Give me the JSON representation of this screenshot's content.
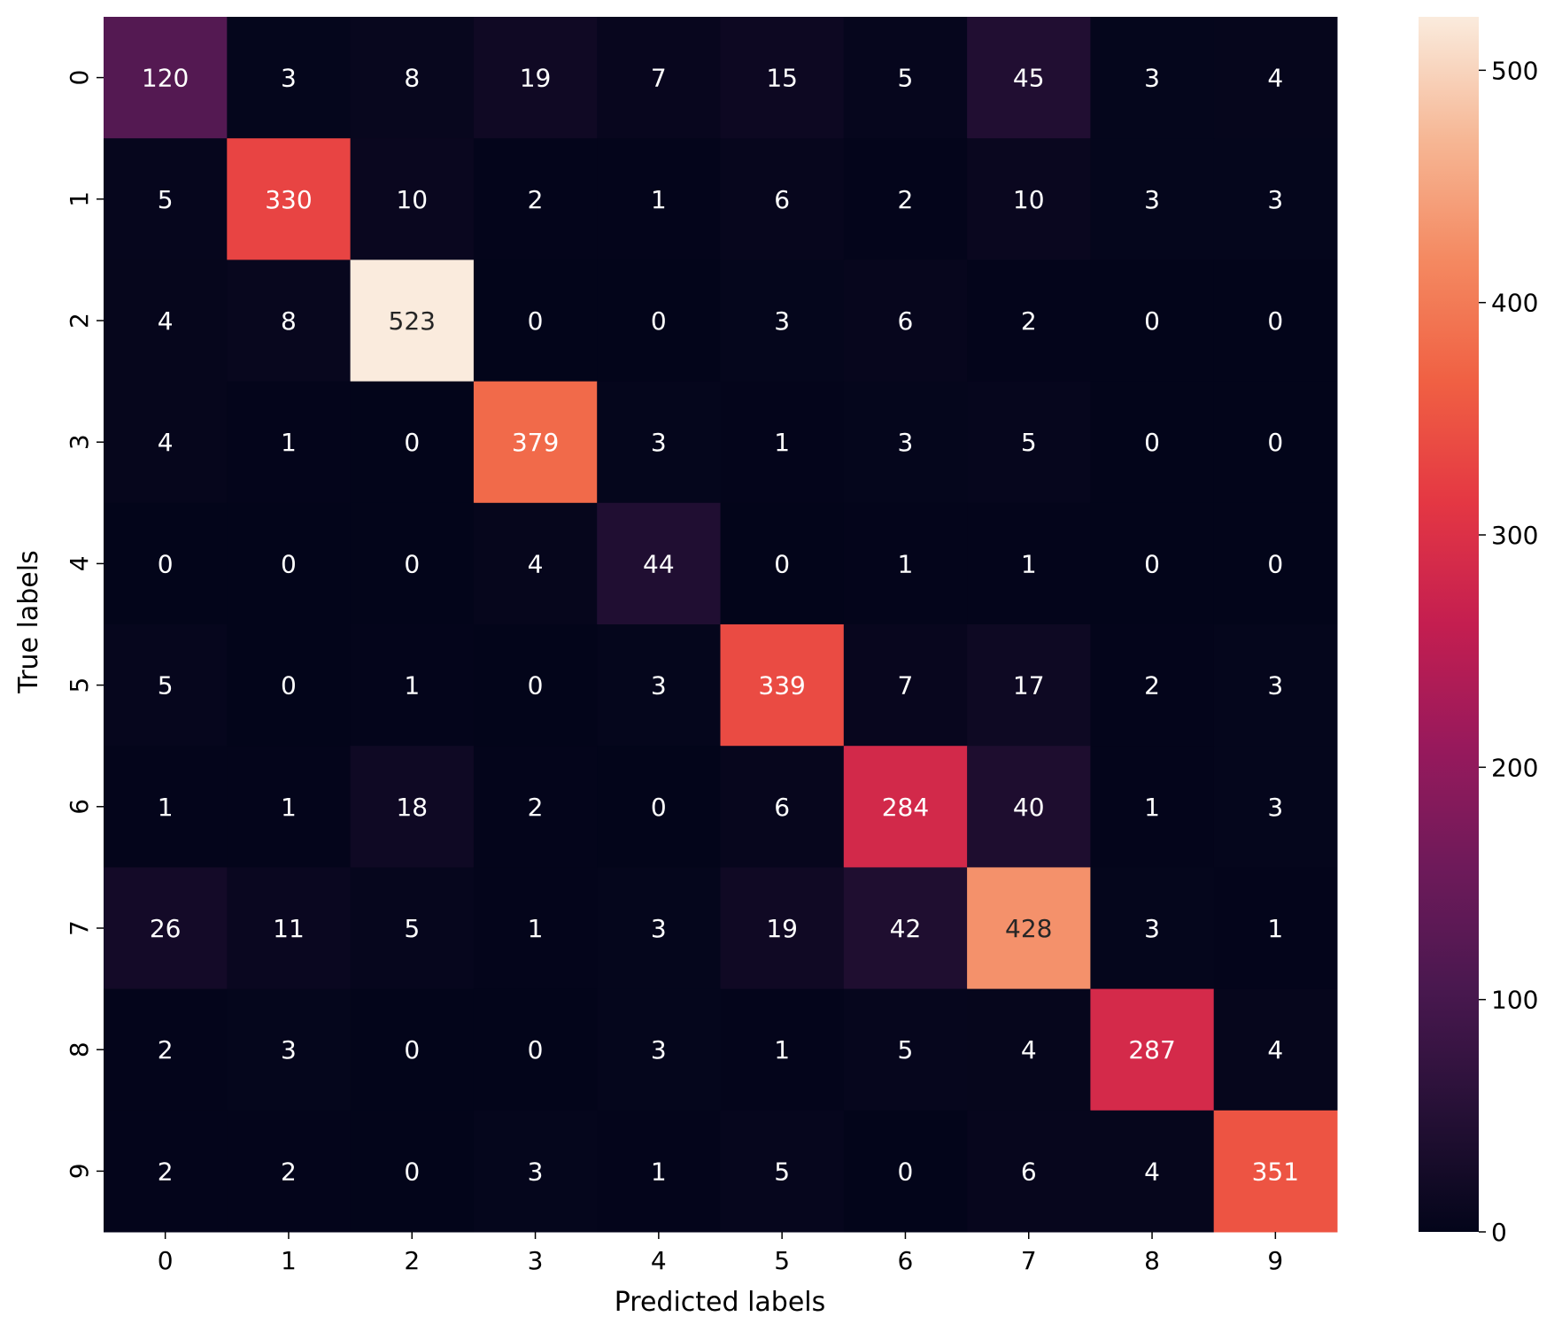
{
  "chart_data": {
    "type": "heatmap",
    "title": "",
    "xlabel": "Predicted labels",
    "ylabel": "True labels",
    "x_categories": [
      "0",
      "1",
      "2",
      "3",
      "4",
      "5",
      "6",
      "7",
      "8",
      "9"
    ],
    "y_categories": [
      "0",
      "1",
      "2",
      "3",
      "4",
      "5",
      "6",
      "7",
      "8",
      "9"
    ],
    "values": [
      [
        120,
        3,
        8,
        19,
        7,
        15,
        5,
        45,
        3,
        4
      ],
      [
        5,
        330,
        10,
        2,
        1,
        6,
        2,
        10,
        3,
        3
      ],
      [
        4,
        8,
        523,
        0,
        0,
        3,
        6,
        2,
        0,
        0
      ],
      [
        4,
        1,
        0,
        379,
        3,
        1,
        3,
        5,
        0,
        0
      ],
      [
        0,
        0,
        0,
        4,
        44,
        0,
        1,
        1,
        0,
        0
      ],
      [
        5,
        0,
        1,
        0,
        3,
        339,
        7,
        17,
        2,
        3
      ],
      [
        1,
        1,
        18,
        2,
        0,
        6,
        284,
        40,
        1,
        3
      ],
      [
        26,
        11,
        5,
        1,
        3,
        19,
        42,
        428,
        3,
        1
      ],
      [
        2,
        3,
        0,
        0,
        3,
        1,
        5,
        4,
        287,
        4
      ],
      [
        2,
        2,
        0,
        3,
        1,
        5,
        0,
        6,
        4,
        351
      ]
    ],
    "colormap": "rocket",
    "colorbar": {
      "min": 0,
      "max": 523,
      "ticks": [
        0,
        100,
        200,
        300,
        400,
        500
      ]
    },
    "annotations": true
  }
}
